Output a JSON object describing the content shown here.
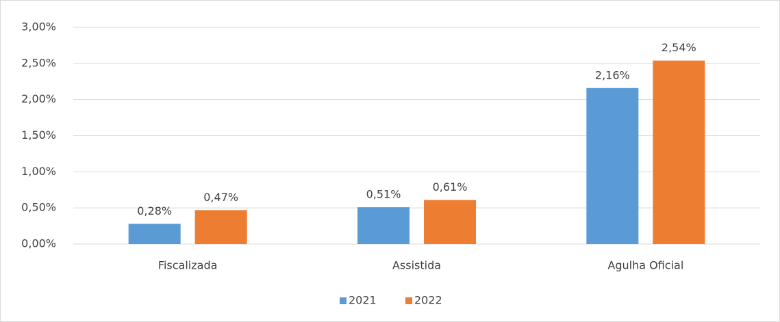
{
  "chart_data": {
    "type": "bar",
    "categories": [
      "Fiscalizada",
      "Assistida",
      "Agulha Oficial"
    ],
    "series": [
      {
        "name": "2021",
        "color": "#5b9bd5",
        "values": [
          0.28,
          0.51,
          2.16
        ],
        "value_labels": [
          "0,28%",
          "0,51%",
          "2,16%"
        ]
      },
      {
        "name": "2022",
        "color": "#ed7d31",
        "values": [
          0.47,
          0.61,
          2.54
        ],
        "value_labels": [
          "0,47%",
          "0,61%",
          "2,54%"
        ]
      }
    ],
    "ylim": [
      0,
      3
    ],
    "yticks": [
      {
        "value": 0,
        "label": "0,00%"
      },
      {
        "value": 0.5,
        "label": "0,50%"
      },
      {
        "value": 1,
        "label": "1,00%"
      },
      {
        "value": 1.5,
        "label": "1,50%"
      },
      {
        "value": 2,
        "label": "2,00%"
      },
      {
        "value": 2.5,
        "label": "2,50%"
      },
      {
        "value": 3,
        "label": "3,00%"
      }
    ],
    "grid": true,
    "legend": "bottom"
  }
}
